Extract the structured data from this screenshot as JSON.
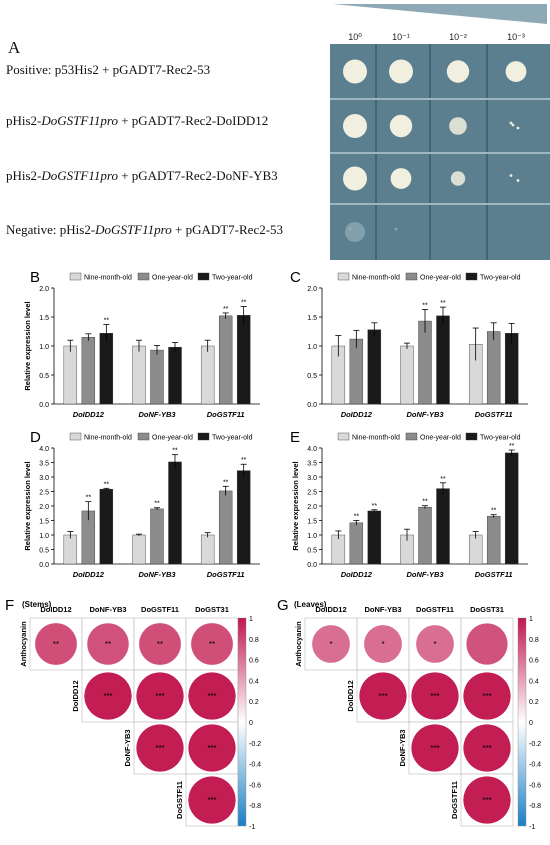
{
  "panelA": {
    "label": "A",
    "dilutions": [
      "10⁰",
      "10⁻¹",
      "10⁻²",
      "10⁻³"
    ],
    "rows": [
      {
        "parts": [
          {
            "t": "Positive: p53His2 + pGADT7-Rec2-53",
            "i": false
          }
        ]
      },
      {
        "parts": [
          {
            "t": "pHis2-",
            "i": false
          },
          {
            "t": "DoGSTF11pro",
            "i": true
          },
          {
            "t": " + pGADT7-Rec2-DoIDD12",
            "i": false
          }
        ]
      },
      {
        "parts": [
          {
            "t": "pHis2-",
            "i": false
          },
          {
            "t": "DoGSTF11pro",
            "i": true
          },
          {
            "t": " + pGADT7-Rec2-DoNF-YB3",
            "i": false
          }
        ]
      },
      {
        "parts": [
          {
            "t": "Negative: pHis2-",
            "i": false
          },
          {
            "t": "DoGSTF11pro",
            "i": true
          },
          {
            "t": " + pGADT7-Rec2-53",
            "i": false
          }
        ]
      }
    ],
    "growth": [
      [
        1,
        1,
        0.9,
        0.8
      ],
      [
        1,
        0.9,
        0.6,
        0.15
      ],
      [
        1,
        0.8,
        0.4,
        0.1
      ],
      [
        0.05,
        0.02,
        0,
        0
      ]
    ],
    "colors": {
      "plate": "#5b7f8f",
      "plate_dark": "#3f6474",
      "colony": "#f1efdf",
      "wedge": "#8ea9b6"
    }
  },
  "legend": [
    "Nine-month-old",
    "One-year-old",
    "Two-year-old"
  ],
  "series_colors": [
    "#d9d9d9",
    "#8c8c8c",
    "#1a1a1a"
  ],
  "bar_charts": [
    {
      "label": "B",
      "ylabel": "Relative expression level",
      "ylim": [
        0,
        2.0
      ],
      "yticks": [
        "0.0",
        "0.5",
        "1.0",
        "1.5",
        "2.0"
      ],
      "categories": [
        "DoIDD12",
        "DoNF-YB3",
        "DoGSTF11"
      ],
      "values": [
        [
          1.0,
          1.15,
          1.22
        ],
        [
          1.0,
          0.93,
          0.98
        ],
        [
          1.0,
          1.52,
          1.53
        ]
      ],
      "err": [
        [
          0.1,
          0.06,
          0.15
        ],
        [
          0.1,
          0.08,
          0.08
        ],
        [
          0.1,
          0.05,
          0.15
        ]
      ],
      "sig": [
        [
          "",
          "",
          "**"
        ],
        [
          "",
          "",
          ""
        ],
        [
          "",
          "**",
          "**"
        ]
      ]
    },
    {
      "label": "C",
      "ylabel": "",
      "ylim": [
        0,
        2.0
      ],
      "yticks": [
        "0.0",
        "0.5",
        "1.0",
        "1.5",
        "2.0"
      ],
      "categories": [
        "DoIDD12",
        "DoNF-YB3",
        "DoGSTF11"
      ],
      "values": [
        [
          1.0,
          1.12,
          1.28
        ],
        [
          1.0,
          1.43,
          1.52
        ],
        [
          1.03,
          1.25,
          1.22
        ]
      ],
      "err": [
        [
          0.18,
          0.15,
          0.12
        ],
        [
          0.05,
          0.2,
          0.15
        ],
        [
          0.28,
          0.15,
          0.17
        ]
      ],
      "sig": [
        [
          "",
          "",
          ""
        ],
        [
          "",
          "**",
          "**"
        ],
        [
          "",
          "",
          ""
        ]
      ]
    },
    {
      "label": "D",
      "ylabel": "Relative expression level",
      "ylim": [
        0,
        4.0
      ],
      "yticks": [
        "0.0",
        "0.5",
        "1.0",
        "1.5",
        "2.0",
        "2.5",
        "3.0",
        "3.5",
        "4.0"
      ],
      "categories": [
        "DoIDD12",
        "DoNF-YB3",
        "DoGSTF11"
      ],
      "values": [
        [
          1.0,
          1.83,
          2.58
        ],
        [
          1.0,
          1.9,
          3.52
        ],
        [
          1.0,
          2.52,
          3.22
        ]
      ],
      "err": [
        [
          0.12,
          0.32,
          0.03
        ],
        [
          0.03,
          0.04,
          0.25
        ],
        [
          0.08,
          0.16,
          0.22
        ]
      ],
      "sig": [
        [
          "",
          "**",
          "**"
        ],
        [
          "",
          "**",
          "**"
        ],
        [
          "",
          "**",
          "**"
        ]
      ]
    },
    {
      "label": "E",
      "ylabel": "Relative expression level",
      "ylim": [
        0,
        4.0
      ],
      "yticks": [
        "0.0",
        "0.5",
        "1.0",
        "1.5",
        "2.0",
        "2.5",
        "3.0",
        "3.5",
        "4.0"
      ],
      "categories": [
        "DoIDD12",
        "DoNF-YB3",
        "DoGSTF11"
      ],
      "values": [
        [
          1.0,
          1.42,
          1.83
        ],
        [
          1.0,
          1.96,
          2.6
        ],
        [
          1.0,
          1.65,
          3.83
        ]
      ],
      "err": [
        [
          0.14,
          0.08,
          0.04
        ],
        [
          0.2,
          0.05,
          0.2
        ],
        [
          0.12,
          0.05,
          0.1
        ]
      ],
      "sig": [
        [
          "",
          "**",
          "**"
        ],
        [
          "",
          "**",
          "**"
        ],
        [
          "",
          "**",
          "**"
        ]
      ]
    }
  ],
  "corr_panels": [
    {
      "label": "F",
      "title": "(Stems)",
      "cols": [
        "DoIDD12",
        "DoNF-YB3",
        "DoGSTF11",
        "DoGST31"
      ],
      "rows": [
        "Anthocyanin",
        "DoIDD12",
        "DoNF-YB3",
        "DoGSTF11"
      ],
      "values": [
        [
          0.76,
          0.75,
          0.76,
          0.76
        ],
        [
          null,
          0.97,
          0.97,
          0.97
        ],
        [
          null,
          null,
          0.97,
          0.97
        ],
        [
          null,
          null,
          null,
          0.97
        ]
      ],
      "sig": [
        [
          "**",
          "**",
          "**",
          "**"
        ],
        [
          null,
          "***",
          "***",
          "***"
        ],
        [
          null,
          null,
          "***",
          "***"
        ],
        [
          null,
          null,
          null,
          "***"
        ]
      ]
    },
    {
      "label": "G",
      "title": "(Leaves)",
      "cols": [
        "DoIDD12",
        "DoNF-YB3",
        "DoGSTF11",
        "DoGST31"
      ],
      "rows": [
        "Anthocyanin",
        "DoIDD12",
        "DoNF-YB3",
        "DoGSTF11"
      ],
      "values": [
        [
          0.62,
          0.62,
          0.62,
          0.74
        ],
        [
          null,
          0.97,
          0.97,
          0.97
        ],
        [
          null,
          null,
          0.97,
          0.97
        ],
        [
          null,
          null,
          null,
          0.97
        ]
      ],
      "sig": [
        [
          "*",
          "*",
          "*",
          ""
        ],
        [
          null,
          "***",
          "***",
          "***"
        ],
        [
          null,
          null,
          "***",
          "***"
        ],
        [
          null,
          null,
          null,
          "***"
        ]
      ]
    }
  ],
  "colorbar": {
    "ticks": [
      "1",
      "0.8",
      "0.6",
      "0.4",
      "0.2",
      "0",
      "-0.2",
      "-0.4",
      "-0.6",
      "-0.8",
      "-1"
    ],
    "top": "#c0174f",
    "mid": "#ffffff",
    "bottom": "#1a7fc4"
  }
}
